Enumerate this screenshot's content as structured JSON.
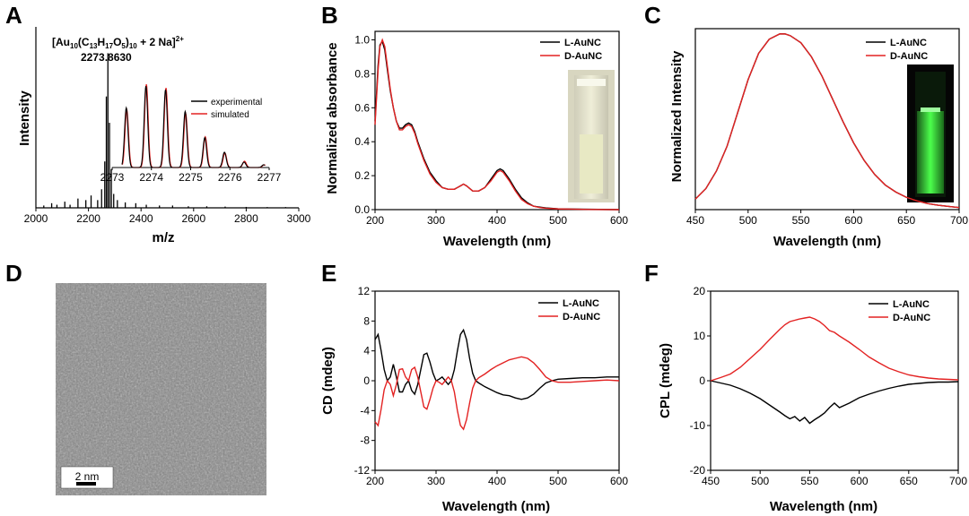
{
  "colors": {
    "black": "#000000",
    "red": "#e32222",
    "tem_bg": "#7f7f7f"
  },
  "panels": {
    "A": {
      "label": "A",
      "chart_data": {
        "type": "line",
        "xlabel": "m/z",
        "ylabel": "Intensity",
        "xlim": [
          2000,
          3000
        ],
        "xticks": [
          2000,
          2200,
          2400,
          2600,
          2800,
          3000
        ],
        "peaks": [
          [
            2030,
            0.015
          ],
          [
            2060,
            0.03
          ],
          [
            2080,
            0.02
          ],
          [
            2110,
            0.04
          ],
          [
            2130,
            0.02
          ],
          [
            2160,
            0.06
          ],
          [
            2190,
            0.05
          ],
          [
            2210,
            0.08
          ],
          [
            2235,
            0.05
          ],
          [
            2250,
            0.12
          ],
          [
            2262,
            0.3
          ],
          [
            2268,
            0.72
          ],
          [
            2273.9,
            1.0
          ],
          [
            2280,
            0.55
          ],
          [
            2287,
            0.25
          ],
          [
            2296,
            0.09
          ],
          [
            2310,
            0.05
          ],
          [
            2340,
            0.035
          ],
          [
            2380,
            0.03
          ],
          [
            2420,
            0.02
          ],
          [
            2470,
            0.015
          ],
          [
            2520,
            0.015
          ],
          [
            2580,
            0.01
          ],
          [
            2650,
            0.01
          ],
          [
            2720,
            0.008
          ],
          [
            2800,
            0.006
          ],
          [
            2880,
            0.005
          ],
          [
            2950,
            0.005
          ]
        ],
        "annotation_formula": {
          "pre": "[Au",
          "s1": "10",
          "mid1": "(C",
          "s2": "13",
          "mid2": "H",
          "s3": "17",
          "mid3": "O",
          "s4": "5",
          "mid4": ")",
          "s5": "10",
          "mid5": " + 2 Na]",
          "sup": "2+"
        },
        "annotation_mass": "2273.8630",
        "inset": {
          "xlim": [
            2273,
            2277
          ],
          "xticks": [
            2273,
            2274,
            2275,
            2276,
            2277
          ],
          "peaks_mz": [
            2273.36,
            2273.86,
            2274.36,
            2274.86,
            2275.36,
            2275.86,
            2276.36,
            2276.86
          ],
          "experimental": [
            0.66,
            0.9,
            0.86,
            0.62,
            0.33,
            0.17,
            0.06,
            0.03
          ],
          "simulated": [
            0.64,
            0.92,
            0.88,
            0.6,
            0.34,
            0.16,
            0.07,
            0.03
          ],
          "legend": [
            "experimental",
            "simulated"
          ]
        }
      }
    },
    "B": {
      "label": "B",
      "chart_data": {
        "type": "line",
        "xlabel": "Wavelength (nm)",
        "ylabel": "Normalized absorbance",
        "xlim": [
          200,
          600
        ],
        "ylim": [
          0,
          1.05
        ],
        "xticks": [
          200,
          300,
          400,
          500,
          600
        ],
        "yticks": [
          0.0,
          0.2,
          0.4,
          0.6,
          0.8,
          1.0
        ],
        "series": [
          {
            "name": "L-AuNC",
            "color": "#000000",
            "x": [
              200,
              205,
              208,
              212,
              216,
              220,
              225,
              230,
              235,
              240,
              245,
              250,
              255,
              260,
              265,
              270,
              280,
              290,
              300,
              310,
              320,
              330,
              340,
              345,
              350,
              360,
              370,
              380,
              390,
              400,
              405,
              410,
              420,
              430,
              440,
              450,
              460,
              470,
              480,
              500,
              550,
              600
            ],
            "y": [
              0.52,
              0.85,
              0.97,
              0.99,
              0.94,
              0.83,
              0.7,
              0.6,
              0.52,
              0.48,
              0.48,
              0.5,
              0.51,
              0.5,
              0.46,
              0.4,
              0.3,
              0.22,
              0.17,
              0.13,
              0.12,
              0.12,
              0.14,
              0.15,
              0.14,
              0.11,
              0.11,
              0.13,
              0.18,
              0.23,
              0.24,
              0.23,
              0.18,
              0.12,
              0.07,
              0.04,
              0.02,
              0.015,
              0.01,
              0.005,
              0.002,
              0.0
            ]
          },
          {
            "name": "D-AuNC",
            "color": "#e32222",
            "x": [
              200,
              205,
              208,
              212,
              216,
              220,
              225,
              230,
              235,
              240,
              245,
              250,
              255,
              260,
              265,
              270,
              280,
              290,
              300,
              310,
              320,
              330,
              340,
              345,
              350,
              360,
              370,
              380,
              390,
              400,
              405,
              410,
              420,
              430,
              440,
              450,
              460,
              470,
              480,
              500,
              550,
              600
            ],
            "y": [
              0.5,
              0.82,
              0.96,
              1.0,
              0.96,
              0.85,
              0.71,
              0.6,
              0.52,
              0.47,
              0.47,
              0.49,
              0.5,
              0.49,
              0.45,
              0.39,
              0.29,
              0.21,
              0.16,
              0.13,
              0.12,
              0.12,
              0.14,
              0.15,
              0.14,
              0.11,
              0.11,
              0.13,
              0.17,
              0.22,
              0.23,
              0.22,
              0.17,
              0.11,
              0.06,
              0.035,
              0.02,
              0.012,
              0.008,
              0.004,
              0.001,
              0.0
            ]
          }
        ],
        "legend_position": "top-right"
      }
    },
    "C": {
      "label": "C",
      "chart_data": {
        "type": "line",
        "xlabel": "Wavelength (nm)",
        "ylabel": "Normalized Intensity",
        "xlim": [
          450,
          700
        ],
        "ylim": [
          0,
          1.03
        ],
        "xticks": [
          450,
          500,
          550,
          600,
          650,
          700
        ],
        "series": [
          {
            "name": "L-AuNC",
            "color": "#000000",
            "x": [
              450,
              460,
              470,
              480,
              490,
              500,
              510,
              520,
              530,
              535,
              540,
              550,
              560,
              570,
              580,
              590,
              600,
              610,
              620,
              630,
              640,
              650,
              660,
              670,
              680,
              690,
              700
            ],
            "y": [
              0.06,
              0.12,
              0.22,
              0.36,
              0.55,
              0.74,
              0.89,
              0.97,
              1.0,
              1.0,
              0.99,
              0.95,
              0.87,
              0.76,
              0.63,
              0.5,
              0.38,
              0.28,
              0.2,
              0.14,
              0.1,
              0.07,
              0.05,
              0.035,
              0.025,
              0.018,
              0.012
            ]
          },
          {
            "name": "D-AuNC",
            "color": "#e32222",
            "x": [
              450,
              460,
              470,
              480,
              490,
              500,
              510,
              520,
              530,
              535,
              540,
              550,
              560,
              570,
              580,
              590,
              600,
              610,
              620,
              630,
              640,
              650,
              660,
              670,
              680,
              690,
              700
            ],
            "y": [
              0.06,
              0.12,
              0.22,
              0.36,
              0.55,
              0.74,
              0.89,
              0.97,
              1.0,
              1.0,
              0.99,
              0.95,
              0.87,
              0.76,
              0.63,
              0.5,
              0.38,
              0.28,
              0.2,
              0.14,
              0.1,
              0.07,
              0.05,
              0.035,
              0.025,
              0.018,
              0.012
            ]
          }
        ],
        "legend_position": "top-right"
      }
    },
    "D": {
      "label": "D",
      "scalebar_label": "2 nm"
    },
    "E": {
      "label": "E",
      "chart_data": {
        "type": "line",
        "xlabel": "Wavelength (nm)",
        "ylabel": "CD (mdeg)",
        "xlim": [
          200,
          600
        ],
        "ylim": [
          -12,
          12
        ],
        "xticks": [
          200,
          300,
          400,
          500,
          600
        ],
        "yticks": [
          -12,
          -8,
          -4,
          0,
          4,
          8,
          12
        ],
        "series": [
          {
            "name": "L-AuNC",
            "color": "#000000",
            "x": [
              200,
              205,
              210,
              215,
              220,
              225,
              230,
              235,
              240,
              245,
              250,
              255,
              260,
              265,
              270,
              275,
              280,
              285,
              290,
              295,
              300,
              305,
              310,
              315,
              320,
              325,
              330,
              335,
              340,
              345,
              350,
              355,
              360,
              365,
              370,
              380,
              390,
              400,
              410,
              420,
              430,
              440,
              450,
              460,
              470,
              480,
              490,
              500,
              520,
              540,
              560,
              580,
              600
            ],
            "y": [
              5.5,
              6.2,
              4,
              1.5,
              0,
              0.5,
              2.2,
              0.5,
              -1.5,
              -1.5,
              -0.5,
              0,
              -1.3,
              -1.8,
              -0.5,
              1.5,
              3.5,
              3.7,
              2.5,
              1,
              0,
              0.2,
              0.5,
              0,
              -0.5,
              0,
              1.5,
              4,
              6.2,
              6.8,
              5.5,
              3,
              1,
              0,
              -0.3,
              -0.8,
              -1.2,
              -1.6,
              -1.9,
              -2,
              -2.3,
              -2.5,
              -2.3,
              -1.8,
              -1,
              -0.3,
              0,
              0.2,
              0.3,
              0.4,
              0.4,
              0.5,
              0.5
            ]
          },
          {
            "name": "D-AuNC",
            "color": "#e32222",
            "x": [
              200,
              205,
              210,
              215,
              220,
              225,
              230,
              235,
              240,
              245,
              250,
              255,
              260,
              265,
              270,
              275,
              280,
              285,
              290,
              295,
              300,
              305,
              310,
              315,
              320,
              325,
              330,
              335,
              340,
              345,
              350,
              355,
              360,
              365,
              370,
              380,
              390,
              400,
              410,
              420,
              430,
              440,
              450,
              460,
              470,
              480,
              490,
              500,
              520,
              540,
              560,
              580,
              600
            ],
            "y": [
              -5.5,
              -6,
              -3.8,
              -1.2,
              0,
              -0.5,
              -2,
              -0.5,
              1.5,
              1.6,
              0.5,
              0,
              1.5,
              1.8,
              0.5,
              -1.5,
              -3.5,
              -3.8,
              -2.5,
              -1,
              0,
              -0.2,
              -0.5,
              0,
              0.5,
              0,
              -1.5,
              -4,
              -6,
              -6.5,
              -5.2,
              -3,
              -1,
              0,
              0.4,
              0.9,
              1.5,
              2,
              2.4,
              2.8,
              3,
              3.2,
              3,
              2.4,
              1.5,
              0.5,
              0,
              -0.2,
              -0.2,
              -0.1,
              0,
              0.1,
              0
            ]
          }
        ],
        "legend_position": "top-right"
      }
    },
    "F": {
      "label": "F",
      "chart_data": {
        "type": "line",
        "xlabel": "Wavelength (nm)",
        "ylabel": "CPL (mdeg)",
        "xlim": [
          450,
          700
        ],
        "ylim": [
          -20,
          20
        ],
        "xticks": [
          450,
          500,
          550,
          600,
          650,
          700
        ],
        "yticks": [
          -20,
          -10,
          0,
          10,
          20
        ],
        "series": [
          {
            "name": "L-AuNC",
            "color": "#000000",
            "x": [
              450,
              460,
              470,
              480,
              490,
              500,
              510,
              520,
              525,
              530,
              535,
              540,
              545,
              550,
              555,
              560,
              565,
              570,
              575,
              580,
              590,
              600,
              610,
              620,
              630,
              640,
              650,
              660,
              670,
              680,
              690,
              700
            ],
            "y": [
              0,
              -0.5,
              -1,
              -1.8,
              -2.8,
              -4,
              -5.5,
              -7,
              -7.8,
              -8.5,
              -8,
              -9,
              -8.2,
              -9.5,
              -8.7,
              -8,
              -7.2,
              -6,
              -5,
              -6,
              -5,
              -3.8,
              -3,
              -2.3,
              -1.7,
              -1.2,
              -0.8,
              -0.6,
              -0.4,
              -0.3,
              -0.3,
              -0.2
            ]
          },
          {
            "name": "D-AuNC",
            "color": "#e32222",
            "x": [
              450,
              460,
              470,
              480,
              490,
              500,
              510,
              520,
              525,
              530,
              535,
              540,
              545,
              550,
              555,
              560,
              565,
              570,
              575,
              580,
              590,
              600,
              610,
              620,
              630,
              640,
              650,
              660,
              670,
              680,
              690,
              700
            ],
            "y": [
              0,
              0.7,
              1.5,
              3,
              5,
              7,
              9.3,
              11.5,
              12.5,
              13.2,
              13.5,
              13.8,
              14,
              14.2,
              13.8,
              13.2,
              12.3,
              11.2,
              10.8,
              10,
              8.6,
              7,
              5.3,
              4,
              2.8,
              2,
              1.3,
              0.9,
              0.6,
              0.4,
              0.3,
              0.2
            ]
          }
        ],
        "legend_position": "top-right"
      }
    }
  }
}
